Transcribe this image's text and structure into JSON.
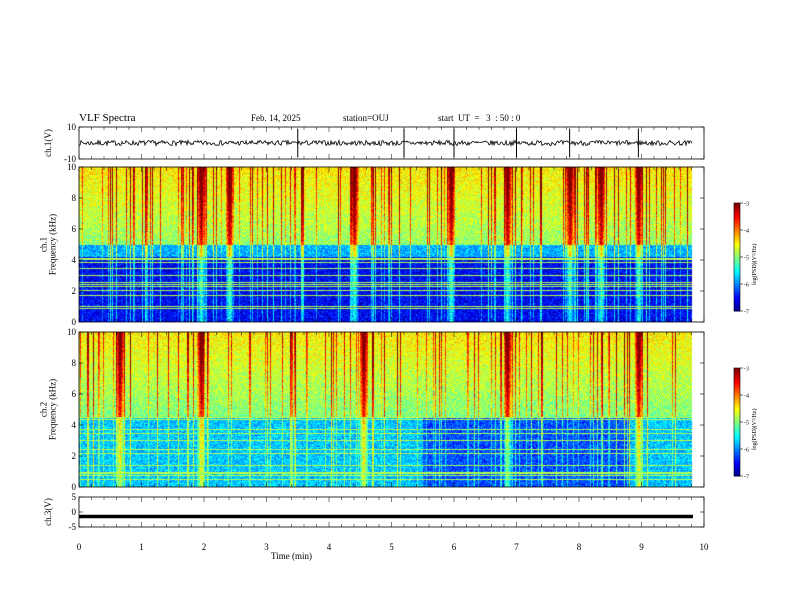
{
  "header": {
    "title": "VLF Spectra",
    "date": "Feb. 14, 2025",
    "station": "station=OUJ",
    "start": "start  UT  =   3  : 50 : 0"
  },
  "chart_data": [
    {
      "type": "line",
      "panel": "ch1-waveform",
      "ylabel": "ch.1(V)",
      "ylim": [
        -10,
        10
      ],
      "y_ticks": [
        "10",
        "-10"
      ],
      "xlim": [
        0,
        10
      ],
      "baseline": 0,
      "spikes_min": [
        3.5,
        5.2,
        6.0,
        7.0,
        7.85,
        8.95
      ],
      "color": "#000000"
    },
    {
      "type": "heatmap",
      "panel": "ch1-spectrogram",
      "ylabel": "ch.1\nFrequency (kHz)",
      "ylabel_lines": [
        "ch.1",
        "Frequency (kHz)"
      ],
      "ylim": [
        0,
        10
      ],
      "y_ticks": [
        "0",
        "2",
        "4",
        "6",
        "8",
        "10"
      ],
      "xlim": [
        0,
        10
      ],
      "data_end_min": 9.8,
      "colorbar": {
        "label": "log(PSD)(V²/Hz)",
        "min": -7,
        "max": -3,
        "ticks": [
          "-3",
          "-4",
          "-5",
          "-6",
          "-7"
        ]
      },
      "seed": 17,
      "intense_bursts_min": [
        1.95,
        2.4,
        4.4,
        5.95,
        6.85,
        7.85,
        8.35,
        8.95
      ]
    },
    {
      "type": "heatmap",
      "panel": "ch2-spectrogram",
      "ylabel": "ch.2\nFrequency (kHz)",
      "ylabel_lines": [
        "ch.2",
        "Frequency (kHz)"
      ],
      "ylim": [
        0,
        10
      ],
      "y_ticks": [
        "0",
        "2",
        "4",
        "6",
        "8",
        "10"
      ],
      "xlim": [
        0,
        10
      ],
      "data_end_min": 9.8,
      "colorbar": {
        "label": "log(PSD)(V²/Hz)",
        "min": -7,
        "max": -3,
        "ticks": [
          "-3",
          "-4",
          "-5",
          "-6",
          "-7"
        ]
      },
      "seed": 29,
      "intense_bursts_min": [
        0.65,
        1.95,
        4.55,
        6.85,
        8.95
      ]
    },
    {
      "type": "line",
      "panel": "ch3-waveform",
      "ylabel": "ch.3(V)",
      "ylim": [
        -5,
        5
      ],
      "y_ticks": [
        "5",
        "0",
        "-5"
      ],
      "xlim": [
        0,
        10
      ],
      "value": -1.5,
      "color": "#000000"
    }
  ],
  "x_axis": {
    "label": "Time (min)",
    "ticks": [
      "0",
      "1",
      "2",
      "3",
      "4",
      "5",
      "6",
      "7",
      "8",
      "9",
      "10"
    ]
  }
}
